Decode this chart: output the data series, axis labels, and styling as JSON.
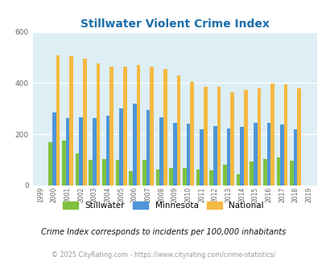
{
  "title": "Stillwater Violent Crime Index",
  "years": [
    1999,
    2000,
    2001,
    2002,
    2003,
    2004,
    2005,
    2006,
    2007,
    2008,
    2009,
    2010,
    2011,
    2012,
    2013,
    2014,
    2015,
    2016,
    2017,
    2018,
    2019
  ],
  "stillwater": [
    0,
    170,
    175,
    125,
    100,
    103,
    100,
    55,
    100,
    62,
    68,
    68,
    62,
    60,
    82,
    43,
    95,
    103,
    110,
    96,
    0
  ],
  "minnesota": [
    0,
    285,
    263,
    268,
    263,
    272,
    300,
    320,
    295,
    265,
    245,
    240,
    220,
    233,
    222,
    228,
    245,
    245,
    237,
    220,
    0
  ],
  "national": [
    0,
    507,
    506,
    494,
    475,
    463,
    464,
    469,
    464,
    455,
    430,
    404,
    387,
    387,
    365,
    372,
    380,
    399,
    395,
    380,
    0
  ],
  "stillwater_color": "#7fc241",
  "minnesota_color": "#4d96d9",
  "national_color": "#f5b942",
  "bg_color": "#ddeef5",
  "title_color": "#1a6fa8",
  "ylim": [
    0,
    600
  ],
  "yticks": [
    0,
    200,
    400,
    600
  ],
  "footnote": "Crime Index corresponds to incidents per 100,000 inhabitants",
  "credit": "© 2025 CityRating.com - https://www.cityrating.com/crime-statistics/",
  "bar_width": 0.28
}
